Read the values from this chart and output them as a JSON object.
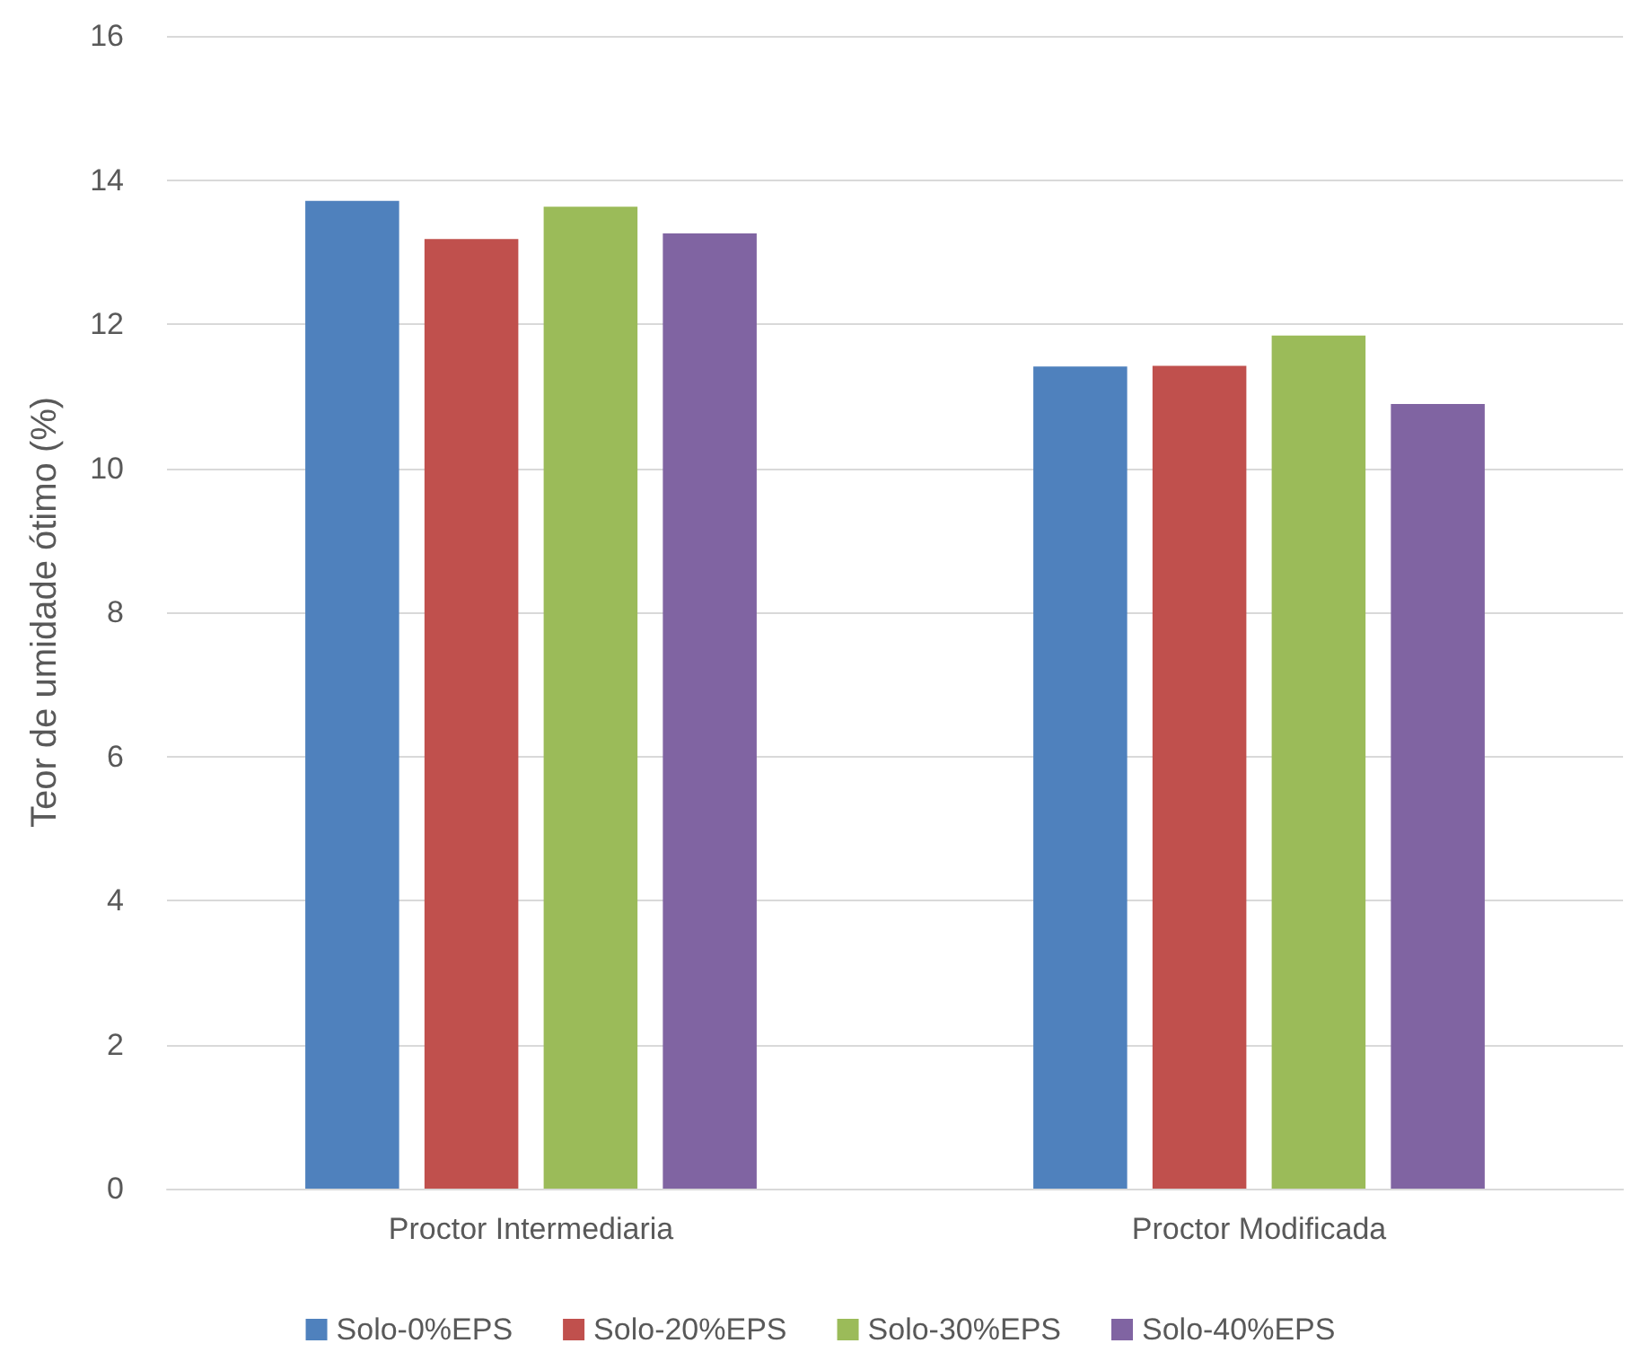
{
  "chart_data": {
    "type": "bar",
    "ylabel": "Teor de umidade ótimo (%)",
    "categories": [
      "Proctor Intermediaria",
      "Proctor Modificada"
    ],
    "series": [
      {
        "name": "Solo-0%EPS",
        "color": "#4f81bd",
        "values": [
          13.71,
          11.41
        ]
      },
      {
        "name": "Solo-20%EPS",
        "color": "#c0504d",
        "values": [
          13.18,
          11.42
        ]
      },
      {
        "name": "Solo-30%EPS",
        "color": "#9bbb59",
        "values": [
          13.63,
          11.84
        ]
      },
      {
        "name": "Solo-40%EPS",
        "color": "#8064a2",
        "values": [
          13.26,
          10.89
        ]
      }
    ],
    "ylim": [
      0,
      16
    ],
    "yticks": [
      0,
      2,
      4,
      6,
      8,
      10,
      12,
      14,
      16
    ],
    "grid": "y",
    "legend": "bottom"
  }
}
